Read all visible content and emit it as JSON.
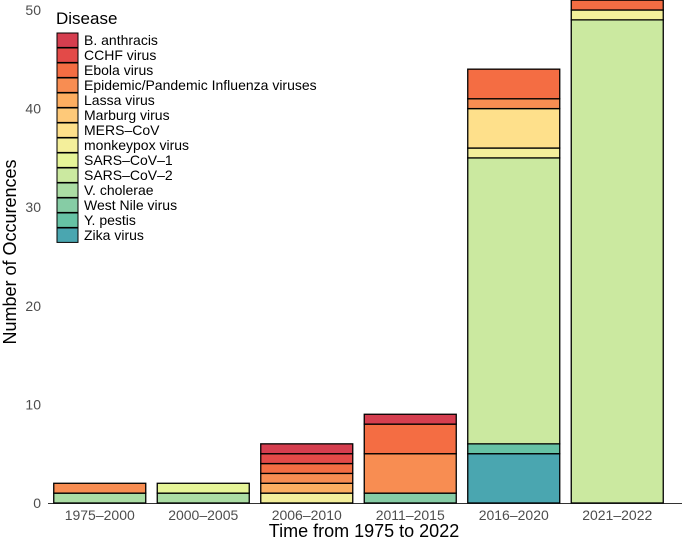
{
  "chart_data": {
    "type": "bar",
    "stacked": true,
    "title": "",
    "xlabel": "Time from 1975 to 2022",
    "ylabel": "Number of Occurences",
    "ylim": [
      0,
      50
    ],
    "yticks": [
      0,
      10,
      20,
      30,
      40,
      50
    ],
    "categories": [
      "1975–2000",
      "2000–2005",
      "2006–2010",
      "2011–2015",
      "2016–2020",
      "2021–2022"
    ],
    "legend": {
      "title": "Disease",
      "placement": "top-left"
    },
    "series": [
      {
        "name": "B. anthracis",
        "color": "#d53e4f",
        "values": [
          0,
          0,
          1,
          1,
          0,
          0
        ]
      },
      {
        "name": "CCHF virus",
        "color": "#e34a48",
        "values": [
          0,
          0,
          1,
          0,
          0,
          0
        ]
      },
      {
        "name": "Ebola virus",
        "color": "#f46d43",
        "values": [
          0,
          0,
          1,
          3,
          3,
          1
        ]
      },
      {
        "name": "Epidemic/Pandemic Influenza viruses",
        "color": "#f88d52",
        "values": [
          1,
          0,
          1,
          4,
          1,
          0
        ]
      },
      {
        "name": "Lassa virus",
        "color": "#fdae61",
        "values": [
          0,
          0,
          1,
          0,
          0,
          0
        ]
      },
      {
        "name": "Marburg virus",
        "color": "#fec979",
        "values": [
          0,
          0,
          0,
          0,
          0,
          0
        ]
      },
      {
        "name": "MERS–CoV",
        "color": "#fee08b",
        "values": [
          0,
          0,
          0,
          0,
          4,
          0
        ]
      },
      {
        "name": "monkeypox virus",
        "color": "#f4ef9b",
        "values": [
          0,
          0,
          1,
          0,
          1,
          1
        ]
      },
      {
        "name": "SARS–CoV–1",
        "color": "#e6f598",
        "values": [
          0,
          1,
          0,
          0,
          0,
          0
        ]
      },
      {
        "name": "SARS–CoV–2",
        "color": "#cbe9a0",
        "values": [
          0,
          0,
          0,
          0,
          29,
          49
        ]
      },
      {
        "name": "V. cholerae",
        "color": "#abdda4",
        "values": [
          1,
          1,
          0,
          0,
          0,
          0
        ]
      },
      {
        "name": "West Nile virus",
        "color": "#86cca5",
        "values": [
          0,
          0,
          0,
          1,
          0,
          0
        ]
      },
      {
        "name": "Y. pestis",
        "color": "#66c2a5",
        "values": [
          0,
          0,
          0,
          0,
          1,
          0
        ]
      },
      {
        "name": "Zika virus",
        "color": "#4aa6b0",
        "values": [
          0,
          0,
          0,
          0,
          5,
          0
        ]
      }
    ]
  }
}
